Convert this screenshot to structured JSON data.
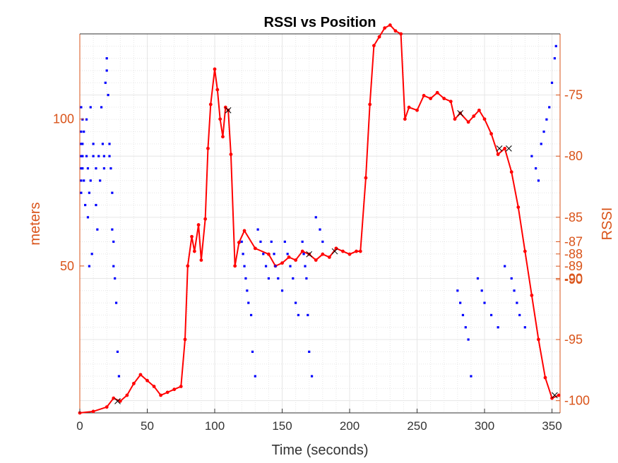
{
  "chart_data": {
    "type": "scatter",
    "title": "RSSI vs Position",
    "xlabel": "Time (seconds)",
    "ylabel_left": "meters",
    "ylabel_right": "RSSI",
    "xlim": [
      0,
      356
    ],
    "ylim_left": [
      0,
      129
    ],
    "ylim_right": [
      -101,
      -70
    ],
    "xticks": [
      "0",
      "50",
      "100",
      "150",
      "200",
      "250",
      "300",
      "350"
    ],
    "xtick_values": [
      0,
      50,
      100,
      150,
      200,
      250,
      300,
      350
    ],
    "yticks_left": [
      "50",
      "100"
    ],
    "ytick_values_left": [
      50,
      100
    ],
    "yticks_right": [
      "-75",
      "-80",
      "-85",
      "-87",
      "-88",
      "-89",
      "-90",
      "-90",
      "-95",
      "-100"
    ],
    "ytick_values_right": [
      -75,
      -80,
      -85,
      -87,
      -88,
      -89,
      -90,
      -90.1,
      -95,
      -100
    ],
    "grid": true,
    "colors": {
      "rssi_dots": "#0000ff",
      "position_line": "#ff0000",
      "markers": "#000000",
      "axis_right": "#d95319",
      "axis_left": "#d95319",
      "grid": "#e6e6e6"
    },
    "series": [
      {
        "axis": "left",
        "kind": "line_with_dots",
        "points": [
          [
            0,
            0
          ],
          [
            10,
            0.5
          ],
          [
            20,
            2
          ],
          [
            25,
            5
          ],
          [
            30,
            4
          ],
          [
            35,
            6
          ],
          [
            40,
            10
          ],
          [
            45,
            13
          ],
          [
            50,
            11
          ],
          [
            55,
            9
          ],
          [
            60,
            6
          ],
          [
            65,
            7
          ],
          [
            70,
            8
          ],
          [
            75,
            9
          ],
          [
            78,
            25
          ],
          [
            80,
            50
          ],
          [
            83,
            60
          ],
          [
            85,
            55
          ],
          [
            88,
            64
          ],
          [
            90,
            52
          ],
          [
            93,
            66
          ],
          [
            95,
            90
          ],
          [
            97,
            105
          ],
          [
            100,
            117
          ],
          [
            102,
            110
          ],
          [
            104,
            100
          ],
          [
            106,
            94
          ],
          [
            108,
            104
          ],
          [
            110,
            103
          ],
          [
            112,
            88
          ],
          [
            115,
            50
          ],
          [
            118,
            58
          ],
          [
            122,
            62
          ],
          [
            130,
            56
          ],
          [
            140,
            54
          ],
          [
            145,
            50
          ],
          [
            150,
            51
          ],
          [
            155,
            53
          ],
          [
            160,
            52
          ],
          [
            165,
            55
          ],
          [
            170,
            54
          ],
          [
            175,
            52
          ],
          [
            180,
            54
          ],
          [
            185,
            53
          ],
          [
            190,
            56
          ],
          [
            195,
            55
          ],
          [
            200,
            54
          ],
          [
            205,
            55
          ],
          [
            208,
            55
          ],
          [
            212,
            80
          ],
          [
            215,
            105
          ],
          [
            218,
            125
          ],
          [
            222,
            128
          ],
          [
            226,
            131
          ],
          [
            230,
            132
          ],
          [
            234,
            130
          ],
          [
            238,
            129
          ],
          [
            241,
            100
          ],
          [
            244,
            104
          ],
          [
            250,
            103
          ],
          [
            255,
            108
          ],
          [
            260,
            107
          ],
          [
            265,
            109
          ],
          [
            270,
            107
          ],
          [
            275,
            106
          ],
          [
            278,
            100
          ],
          [
            282,
            102
          ],
          [
            288,
            99
          ],
          [
            292,
            101
          ],
          [
            296,
            103
          ],
          [
            300,
            100
          ],
          [
            305,
            95
          ],
          [
            310,
            88
          ],
          [
            315,
            90
          ],
          [
            320,
            82
          ],
          [
            325,
            70
          ],
          [
            330,
            55
          ],
          [
            335,
            40
          ],
          [
            340,
            25
          ],
          [
            345,
            12
          ],
          [
            350,
            5
          ],
          [
            355,
            6
          ]
        ]
      },
      {
        "axis": "right",
        "kind": "dots",
        "description_values": "RSSI readings",
        "points": [
          [
            1,
            -76
          ],
          [
            1,
            -78
          ],
          [
            1,
            -79
          ],
          [
            1,
            -80
          ],
          [
            1,
            -81
          ],
          [
            1,
            -82
          ],
          [
            1,
            -83
          ],
          [
            2,
            -77
          ],
          [
            2,
            -79
          ],
          [
            2,
            -80
          ],
          [
            2,
            -81
          ],
          [
            3,
            -78
          ],
          [
            3,
            -82
          ],
          [
            4,
            -84
          ],
          [
            5,
            -77
          ],
          [
            5,
            -80
          ],
          [
            6,
            -81
          ],
          [
            6,
            -85
          ],
          [
            7,
            -83
          ],
          [
            7,
            -89
          ],
          [
            8,
            -76
          ],
          [
            8,
            -82
          ],
          [
            9,
            -88
          ],
          [
            10,
            -79
          ],
          [
            10,
            -80
          ],
          [
            12,
            -81
          ],
          [
            12,
            -84
          ],
          [
            13,
            -86
          ],
          [
            14,
            -80
          ],
          [
            15,
            -82
          ],
          [
            16,
            -76
          ],
          [
            17,
            -79
          ],
          [
            18,
            -80
          ],
          [
            18,
            -81
          ],
          [
            19,
            -74
          ],
          [
            20,
            -72
          ],
          [
            20,
            -73
          ],
          [
            21,
            -75
          ],
          [
            22,
            -79
          ],
          [
            22,
            -80
          ],
          [
            23,
            -81
          ],
          [
            24,
            -83
          ],
          [
            24,
            -86
          ],
          [
            25,
            -87
          ],
          [
            25,
            -89
          ],
          [
            26,
            -90
          ],
          [
            27,
            -92
          ],
          [
            28,
            -96
          ],
          [
            29,
            -98
          ],
          [
            120,
            -87
          ],
          [
            121,
            -88
          ],
          [
            122,
            -89
          ],
          [
            123,
            -90
          ],
          [
            124,
            -91
          ],
          [
            125,
            -92
          ],
          [
            127,
            -93
          ],
          [
            128,
            -96
          ],
          [
            130,
            -98
          ],
          [
            132,
            -86
          ],
          [
            134,
            -87
          ],
          [
            136,
            -88
          ],
          [
            138,
            -89
          ],
          [
            140,
            -90
          ],
          [
            142,
            -87
          ],
          [
            144,
            -88
          ],
          [
            145,
            -89
          ],
          [
            147,
            -90
          ],
          [
            150,
            -91
          ],
          [
            152,
            -87
          ],
          [
            154,
            -88
          ],
          [
            156,
            -89
          ],
          [
            158,
            -90
          ],
          [
            160,
            -92
          ],
          [
            162,
            -93
          ],
          [
            165,
            -87
          ],
          [
            166,
            -88
          ],
          [
            167,
            -89
          ],
          [
            168,
            -90
          ],
          [
            169,
            -93
          ],
          [
            170,
            -96
          ],
          [
            172,
            -98
          ],
          [
            175,
            -85
          ],
          [
            178,
            -86
          ],
          [
            180,
            -87
          ],
          [
            280,
            -91
          ],
          [
            282,
            -92
          ],
          [
            284,
            -93
          ],
          [
            286,
            -94
          ],
          [
            288,
            -95
          ],
          [
            290,
            -98
          ],
          [
            295,
            -90
          ],
          [
            298,
            -91
          ],
          [
            300,
            -92
          ],
          [
            305,
            -93
          ],
          [
            310,
            -94
          ],
          [
            315,
            -89
          ],
          [
            320,
            -90
          ],
          [
            322,
            -91
          ],
          [
            324,
            -92
          ],
          [
            326,
            -93
          ],
          [
            330,
            -94
          ],
          [
            335,
            -80
          ],
          [
            338,
            -81
          ],
          [
            340,
            -82
          ],
          [
            342,
            -79
          ],
          [
            344,
            -78
          ],
          [
            346,
            -77
          ],
          [
            348,
            -76
          ],
          [
            350,
            -74
          ],
          [
            352,
            -72
          ],
          [
            353,
            -71
          ]
        ]
      },
      {
        "axis": "left",
        "kind": "x_markers",
        "points": [
          [
            28,
            4
          ],
          [
            110,
            103
          ],
          [
            170,
            54
          ],
          [
            189,
            55
          ],
          [
            282,
            102
          ],
          [
            311,
            90
          ],
          [
            318,
            90
          ],
          [
            352,
            6
          ]
        ]
      }
    ]
  }
}
